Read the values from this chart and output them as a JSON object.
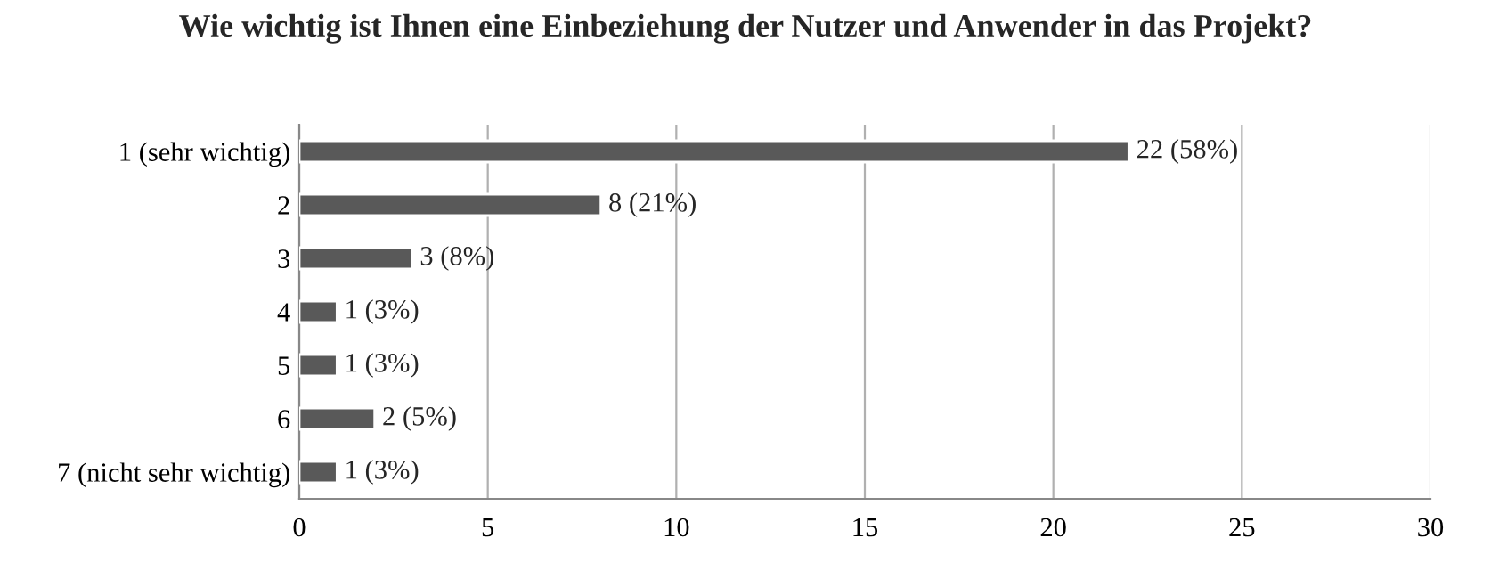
{
  "chart_data": {
    "type": "bar",
    "orientation": "horizontal",
    "title": "Wie wichtig ist Ihnen eine Einbeziehung der Nutzer und Anwender in das Projekt?",
    "categories": [
      "1 (sehr wichtig)",
      "2",
      "3",
      "4",
      "5",
      "6",
      "7 (nicht sehr wichtig)"
    ],
    "values": [
      22,
      8,
      3,
      1,
      1,
      2,
      1
    ],
    "value_labels": [
      "22 (58%)",
      "8 (21%)",
      "3 (8%)",
      "1 (3%)",
      "1 (3%)",
      "2 (5%)",
      "1 (3%)"
    ],
    "color": "#595959",
    "xlim": [
      0,
      30
    ],
    "xticks": [
      0,
      5,
      10,
      15,
      20,
      25,
      30
    ],
    "grid": "x",
    "legend": false
  }
}
